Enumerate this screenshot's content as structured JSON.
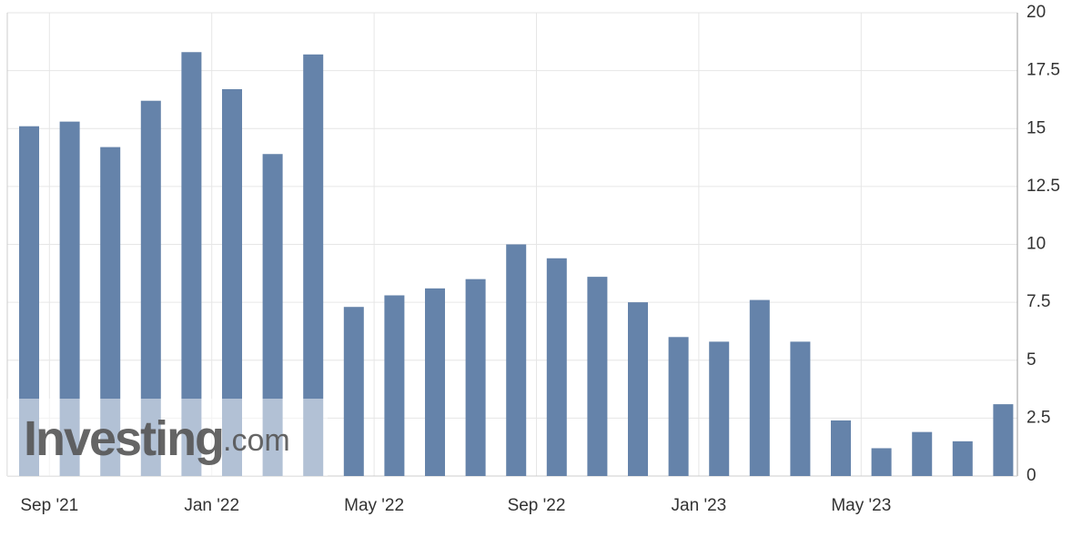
{
  "chart_data": {
    "type": "bar",
    "categories": [
      null,
      "Sep '21",
      null,
      null,
      null,
      "Jan '22",
      null,
      null,
      null,
      "May '22",
      null,
      null,
      null,
      "Sep '22",
      null,
      null,
      null,
      "Jan '23",
      null,
      null,
      null,
      "May '23",
      null,
      null,
      null
    ],
    "values": [
      15.1,
      15.3,
      14.2,
      16.2,
      18.3,
      16.7,
      13.9,
      18.2,
      7.3,
      7.8,
      8.1,
      8.5,
      10.0,
      9.4,
      8.6,
      7.5,
      6.0,
      5.8,
      7.6,
      5.8,
      2.4,
      1.2,
      1.9,
      1.5,
      3.1
    ],
    "color": "#6583aa",
    "ylim": [
      0,
      20
    ],
    "yticks": [
      0,
      2.5,
      5,
      7.5,
      10,
      12.5,
      15,
      17.5,
      20
    ],
    "grid": true,
    "watermark": [
      "Investing",
      ".com"
    ]
  }
}
